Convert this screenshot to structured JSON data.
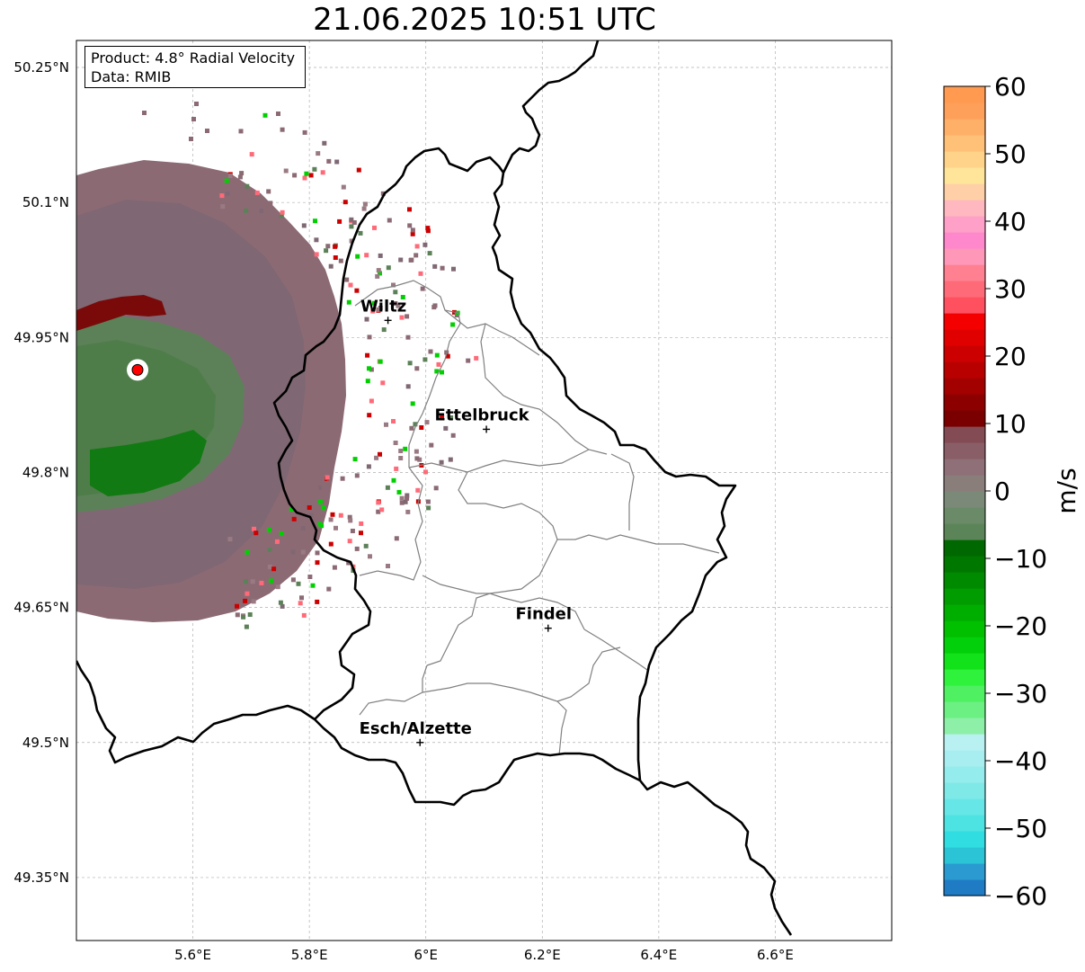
{
  "title": "21.06.2025 10:51 UTC",
  "info": {
    "product": "Product: 4.8° Radial Velocity",
    "data": "Data: RMIB"
  },
  "map": {
    "lon_range": [
      5.4,
      6.8
    ],
    "lat_range": [
      49.28,
      50.28
    ],
    "x_ticks": [
      {
        "lon": 5.6,
        "label": "5.6°E"
      },
      {
        "lon": 5.8,
        "label": "5.8°E"
      },
      {
        "lon": 6.0,
        "label": "6°E"
      },
      {
        "lon": 6.2,
        "label": "6.2°E"
      },
      {
        "lon": 6.4,
        "label": "6.4°E"
      },
      {
        "lon": 6.6,
        "label": "6.6°E"
      }
    ],
    "y_ticks": [
      {
        "lat": 50.25,
        "label": "50.25°N"
      },
      {
        "lat": 50.1,
        "label": "50.1°N"
      },
      {
        "lat": 49.95,
        "label": "49.95°N"
      },
      {
        "lat": 49.8,
        "label": "49.8°N"
      },
      {
        "lat": 49.65,
        "label": "49.65°N"
      },
      {
        "lat": 49.5,
        "label": "49.5°N"
      },
      {
        "lat": 49.35,
        "label": "49.35°N"
      }
    ],
    "cities": [
      {
        "name": "Wiltz",
        "lon": 5.935,
        "lat": 49.969
      },
      {
        "name": "Ettelbruck",
        "lon": 6.104,
        "lat": 49.848
      },
      {
        "name": "Findel",
        "lon": 6.21,
        "lat": 49.627
      },
      {
        "name": "Esch/Alzette",
        "lon": 5.99,
        "lat": 49.5
      }
    ],
    "radar_site": {
      "lon": 5.505,
      "lat": 49.914,
      "color": "#ff0000"
    }
  },
  "colorbar": {
    "unit": "m/s",
    "min": -60,
    "max": 60,
    "ticks": [
      {
        "value": 60,
        "label": "60"
      },
      {
        "value": 50,
        "label": "50"
      },
      {
        "value": 40,
        "label": "40"
      },
      {
        "value": 30,
        "label": "30"
      },
      {
        "value": 20,
        "label": "20"
      },
      {
        "value": 10,
        "label": "10"
      },
      {
        "value": 0,
        "label": "0"
      },
      {
        "value": -10,
        "label": "−10"
      },
      {
        "value": -20,
        "label": "−20"
      },
      {
        "value": -30,
        "label": "−30"
      },
      {
        "value": -40,
        "label": "−40"
      },
      {
        "value": -50,
        "label": "−50"
      },
      {
        "value": -60,
        "label": "−60"
      }
    ],
    "colors_bottom_to_top": [
      "#1f7bc4",
      "#2a9ad0",
      "#2bc4d6",
      "#30dde0",
      "#4de3e2",
      "#66e6e6",
      "#7fe9e8",
      "#95ecec",
      "#a8eef0",
      "#b9f1f2",
      "#8ef0a8",
      "#6cf084",
      "#4ff062",
      "#2ff23c",
      "#12e21a",
      "#02d00a",
      "#00c000",
      "#00ae00",
      "#009c00",
      "#008a00",
      "#007800",
      "#006800",
      "#5b8558",
      "#6a8a68",
      "#7b8a78",
      "#8a7e7a",
      "#8f6f78",
      "#8a5e66",
      "#834c55",
      "#7a0000",
      "#8c0000",
      "#a30000",
      "#b80000",
      "#cc0000",
      "#e00000",
      "#f40000",
      "#ff5060",
      "#ff6a78",
      "#ff8090",
      "#ff98b8",
      "#ff88cc",
      "#ffa0c8",
      "#ffb8c0",
      "#ffd0a8",
      "#ffe59a",
      "#ffd48a",
      "#ffc078",
      "#ffb068",
      "#ffa05a",
      "#ff9a50"
    ]
  }
}
